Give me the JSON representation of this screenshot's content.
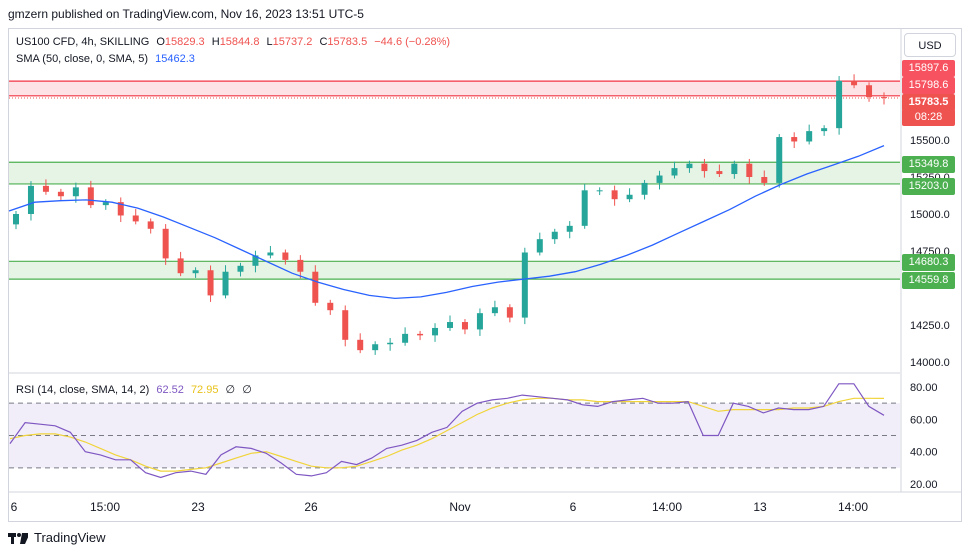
{
  "header": {
    "publish_text": "gmzern published on TradingView.com, Nov 16, 2023 13:51 UTC-5"
  },
  "legend": {
    "symbol": "US100 CFD, 4h, SKILLING",
    "o_label": "O",
    "o_val": "15829.3",
    "h_label": "H",
    "h_val": "15844.8",
    "l_label": "L",
    "l_val": "15737.2",
    "c_label": "C",
    "c_val": "15783.5",
    "change": "−44.6 (−0.28%)",
    "sma_label": "SMA (50, close, 0, SMA, 5)",
    "sma_val": "15462.3",
    "rsi_label": "RSI (14, close, SMA, 14, 2)",
    "rsi_val": "62.52",
    "rsi_sma_val": "72.95",
    "rsi_x1": "∅",
    "rsi_x2": "∅"
  },
  "currency": "USD",
  "price_tags": {
    "upper_zone_top": "15897.6",
    "upper_zone_bottom": "15798.6",
    "last_price": "15783.5",
    "countdown": "08:28",
    "mid_zone_top": "15349.8",
    "mid_zone_bottom": "15203.0",
    "low_zone_top": "14680.3",
    "low_zone_bottom": "14559.8"
  },
  "colors": {
    "up": "#26a69a",
    "down": "#ef5350",
    "sma": "#2962ff",
    "rsi": "#7e57c2",
    "rsi_sma": "#f0d43a",
    "zone_red": "#f23645",
    "zone_green": "#4caf50"
  },
  "footer": {
    "brand": "TradingView"
  },
  "chart_data": [
    {
      "type": "candlestick",
      "ylim": [
        13900,
        16000
      ],
      "y_ticks": [
        "15500.0",
        "15250.0",
        "15000.0",
        "14750.0",
        "14250.0",
        "14000.0"
      ],
      "x_ticks": [
        "6",
        "15:00",
        "23",
        "26",
        "Nov",
        "6",
        "14:00",
        "13",
        "14:00"
      ],
      "zones": [
        {
          "top": 15897.6,
          "bottom": 15798.6,
          "color": "red"
        },
        {
          "top": 15349.8,
          "bottom": 15203.0,
          "color": "green"
        },
        {
          "top": 14680.3,
          "bottom": 14559.8,
          "color": "green"
        }
      ],
      "close": [
        15000,
        15190,
        15150,
        15120,
        15180,
        15060,
        15080,
        14990,
        14950,
        14900,
        14700,
        14600,
        14620,
        14450,
        14610,
        14650,
        14720,
        14740,
        14690,
        14610,
        14400,
        14350,
        14150,
        14080,
        14120,
        14130,
        14190,
        14180,
        14230,
        14270,
        14220,
        14330,
        14370,
        14300,
        14740,
        14830,
        14880,
        14920,
        15160,
        15160,
        15100,
        15130,
        15210,
        15260,
        15310,
        15340,
        15290,
        15270,
        15340,
        15250,
        15210,
        15520,
        15490,
        15560,
        15580,
        15900,
        15870,
        15790,
        15783.5
      ],
      "sma": [
        15020,
        15080,
        15090,
        15095,
        15080,
        15040,
        14980,
        14910,
        14840,
        14760,
        14680,
        14600,
        14540,
        14490,
        14450,
        14430,
        14440,
        14470,
        14510,
        14540,
        14560,
        14580,
        14610,
        14660,
        14720,
        14790,
        14870,
        14950,
        15030,
        15120,
        15200,
        15270,
        15330,
        15390,
        15462.3
      ]
    },
    {
      "type": "line",
      "ylim": [
        20,
        80
      ],
      "y_ticks": [
        "80.00",
        "60.00",
        "40.00",
        "20.00"
      ],
      "bands": [
        70,
        50,
        30
      ],
      "rsi": [
        45,
        58,
        57,
        56,
        52,
        40,
        38,
        35,
        35,
        27,
        24,
        27,
        28,
        26,
        38,
        43,
        42,
        39,
        33,
        26,
        25,
        27,
        34,
        32,
        36,
        42,
        44,
        47,
        52,
        55,
        65,
        70,
        72,
        73,
        75,
        74,
        73,
        72,
        69,
        68,
        71,
        72,
        73,
        70,
        70,
        71,
        50,
        50,
        70,
        68,
        64,
        67,
        66,
        66,
        68,
        82,
        82,
        68,
        62.52
      ],
      "rsi_sma": [
        48,
        50,
        51,
        51,
        49,
        46,
        42,
        38,
        35,
        31,
        28,
        28,
        29,
        30,
        33,
        36,
        39,
        40,
        37,
        34,
        31,
        30,
        30,
        31,
        34,
        37,
        41,
        44,
        48,
        53,
        58,
        63,
        67,
        70,
        72,
        73,
        73,
        72,
        72,
        71,
        71,
        71,
        71,
        71,
        71,
        71,
        68,
        65,
        66,
        66,
        66,
        66,
        67,
        67,
        68,
        71,
        73,
        73,
        72.95
      ]
    }
  ]
}
